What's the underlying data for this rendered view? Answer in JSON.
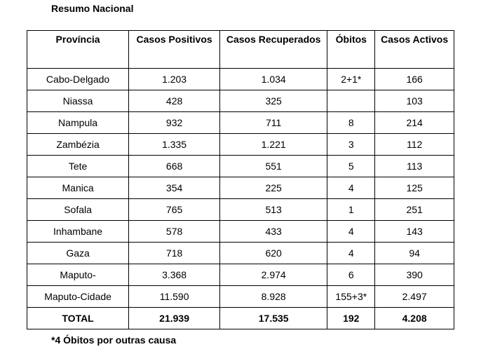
{
  "title": "Resumo Nacional",
  "table": {
    "headers": [
      "Província",
      "Casos Positivos",
      "Casos Recuperados",
      "Óbitos",
      "Casos Activos"
    ],
    "rows": [
      [
        "Cabo-Delgado",
        "1.203",
        "1.034",
        "2+1*",
        "166"
      ],
      [
        "Niassa",
        "428",
        "325",
        "",
        "103"
      ],
      [
        "Nampula",
        "932",
        "711",
        "8",
        "214"
      ],
      [
        "Zambézia",
        "1.335",
        "1.221",
        "3",
        "112"
      ],
      [
        "Tete",
        "668",
        "551",
        "5",
        "113"
      ],
      [
        "Manica",
        "354",
        "225",
        "4",
        "125"
      ],
      [
        "Sofala",
        "765",
        "513",
        "1",
        "251"
      ],
      [
        "Inhambane",
        "578",
        "433",
        "4",
        "143"
      ],
      [
        "Gaza",
        "718",
        "620",
        "4",
        "94"
      ],
      [
        "Maputo-",
        "3.368",
        "2.974",
        "6",
        "390"
      ],
      [
        "Maputo-Cidade",
        "11.590",
        "8.928",
        "155+3*",
        "2.497"
      ]
    ],
    "total": [
      "TOTAL",
      "21.939",
      "17.535",
      "192",
      "4.208"
    ]
  },
  "footnote": "*4 Óbitos por outras causa"
}
